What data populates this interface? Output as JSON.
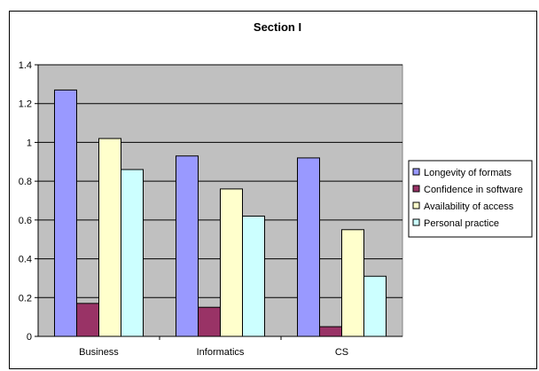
{
  "chart_data": {
    "type": "bar",
    "title": "Section I",
    "xlabel": "",
    "ylabel": "",
    "categories": [
      "Business",
      "Informatics",
      "CS"
    ],
    "series": [
      {
        "name": "Longevity of formats",
        "values": [
          1.27,
          0.93,
          0.92
        ],
        "color": "#9999ff"
      },
      {
        "name": "Confidence in software",
        "values": [
          0.17,
          0.15,
          0.05
        ],
        "color": "#993366"
      },
      {
        "name": "Availability of access",
        "values": [
          1.02,
          0.76,
          0.55
        ],
        "color": "#ffffcc"
      },
      {
        "name": "Personal practice",
        "values": [
          0.86,
          0.62,
          0.31
        ],
        "color": "#ccffff"
      }
    ],
    "ylim": [
      0,
      1.4
    ],
    "yticks": [
      "0",
      "0.2",
      "0.4",
      "0.6",
      "0.8",
      "1",
      "1.2",
      "1.4"
    ],
    "plot_background": "#c0c0c0",
    "grid": true,
    "legend_position": "right"
  }
}
